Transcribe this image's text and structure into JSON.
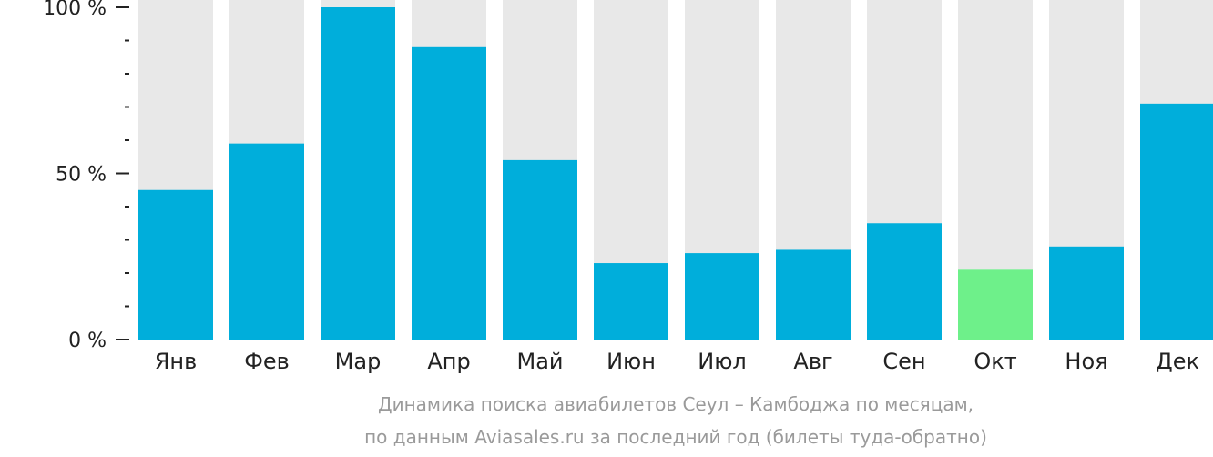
{
  "chart_data": {
    "type": "bar",
    "categories": [
      "Янв",
      "Фев",
      "Мар",
      "Апр",
      "Май",
      "Июн",
      "Июл",
      "Авг",
      "Сен",
      "Окт",
      "Ноя",
      "Дек"
    ],
    "values": [
      45,
      59,
      100,
      88,
      54,
      23,
      26,
      27,
      35,
      21,
      28,
      71
    ],
    "highlight_index": 9,
    "ylim": [
      0,
      100
    ],
    "yticks": [
      {
        "value": 100,
        "label": "100 %"
      },
      {
        "value": 50,
        "label": "50 %"
      },
      {
        "value": 0,
        "label": "0 %"
      }
    ],
    "minor_tick_step": 10,
    "caption_line1": "Динамика поиска авиабилетов Сеул – Камбоджа по месяцам,",
    "caption_line2": "по данным Aviasales.ru за последний год (билеты туда-обратно)",
    "colors": {
      "bar": "#00AEDB",
      "highlight": "#6EF08A",
      "track": "#E8E8E8",
      "axis": "#222222",
      "caption": "#9A9A9A"
    }
  }
}
